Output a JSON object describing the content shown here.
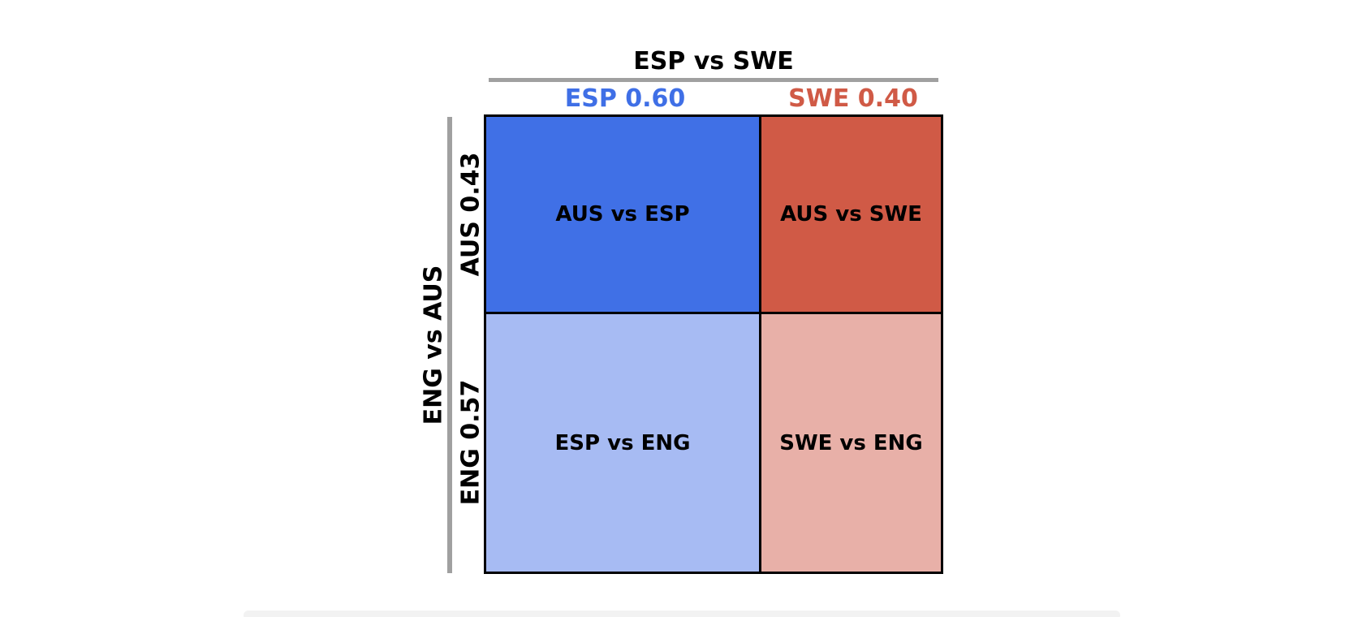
{
  "column_match": {
    "title": "ESP vs SWE",
    "options": [
      {
        "label": "ESP 0.60",
        "color": "#3f6fe6"
      },
      {
        "label": "SWE 0.40",
        "color": "#d05a46"
      }
    ]
  },
  "row_match": {
    "title": "ENG vs AUS",
    "options": [
      {
        "label": "AUS 0.43"
      },
      {
        "label": "ENG 0.57"
      }
    ]
  },
  "cells": [
    {
      "label": "AUS vs ESP",
      "color": "#4070e6"
    },
    {
      "label": "AUS vs SWE",
      "color": "#d05a46"
    },
    {
      "label": "ESP vs ENG",
      "color": "#a7bbf3"
    },
    {
      "label": "SWE vs ENG",
      "color": "#e8b0a8"
    }
  ]
}
